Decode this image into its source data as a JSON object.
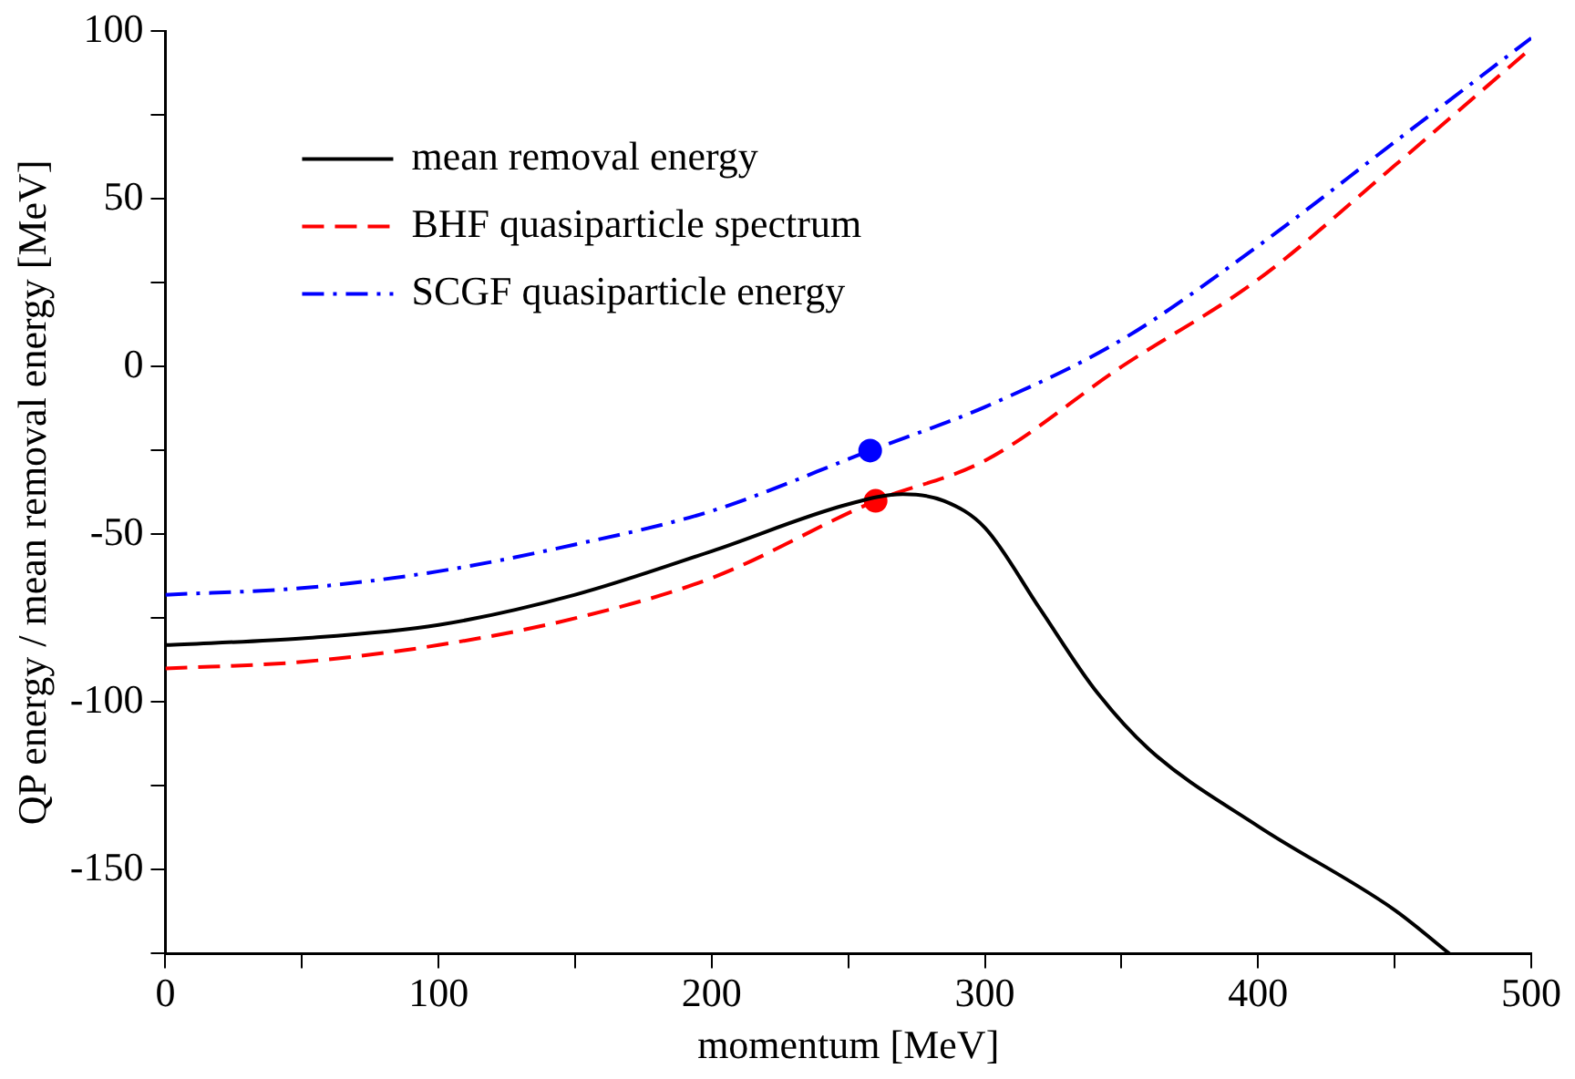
{
  "chart_data": {
    "type": "line",
    "xlabel": "momentum [MeV]",
    "ylabel": "QP energy / mean removal energy [MeV]",
    "xlim": [
      0,
      500
    ],
    "ylim": [
      -175,
      100
    ],
    "xticks": [
      0,
      {
        "value": 50,
        "label": null
      },
      100,
      {
        "value": 150,
        "label": null
      },
      200,
      {
        "value": 250,
        "label": null
      },
      300,
      {
        "value": 350,
        "label": null
      },
      400,
      {
        "value": 450,
        "label": null
      },
      500
    ],
    "yticks": [
      {
        "value": -175,
        "label": null
      },
      -150,
      {
        "value": -125,
        "label": null
      },
      -100,
      {
        "value": -75,
        "label": null
      },
      -50,
      {
        "value": -25,
        "label": null
      },
      0,
      {
        "value": 25,
        "label": null
      },
      50,
      {
        "value": 75,
        "label": null
      },
      100
    ],
    "grid": false,
    "legend": "top left",
    "marker": "none",
    "series": [
      {
        "name": "mean removal energy",
        "color": "#000000",
        "line_style": "solid",
        "x": [
          0,
          50,
          100,
          150,
          200,
          250,
          270,
          285,
          300,
          320,
          340,
          360,
          400,
          450,
          470
        ],
        "values": [
          -83,
          -81,
          -77,
          -68,
          -55,
          -41,
          -38,
          -40,
          -48,
          -72,
          -96,
          -114,
          -137,
          -162,
          -175
        ]
      },
      {
        "name": "BHF quasiparticle spectrum",
        "color": "#ff0000",
        "line_style": "dashed",
        "x": [
          0,
          50,
          100,
          150,
          200,
          260,
          300,
          350,
          400,
          450,
          500
        ],
        "values": [
          -90,
          -88,
          -83,
          -75,
          -63,
          -40,
          -28,
          0,
          26,
          60,
          95
        ]
      },
      {
        "name": "SCGF quasiparticle energy",
        "color": "#0000ff",
        "line_style": "dashdot",
        "x": [
          0,
          50,
          100,
          150,
          200,
          258,
          300,
          350,
          400,
          450,
          500
        ],
        "values": [
          -68,
          -66,
          -61,
          -53,
          -43,
          -25,
          -12,
          8,
          36,
          67,
          98
        ]
      },
      {
        "type": "scatter",
        "color": "#0000ff",
        "marker": "circle",
        "x": [
          258
        ],
        "values": [
          -25
        ]
      },
      {
        "type": "scatter",
        "color": "#ff0000",
        "marker": "circle",
        "x": [
          260
        ],
        "values": [
          -40
        ]
      }
    ]
  }
}
